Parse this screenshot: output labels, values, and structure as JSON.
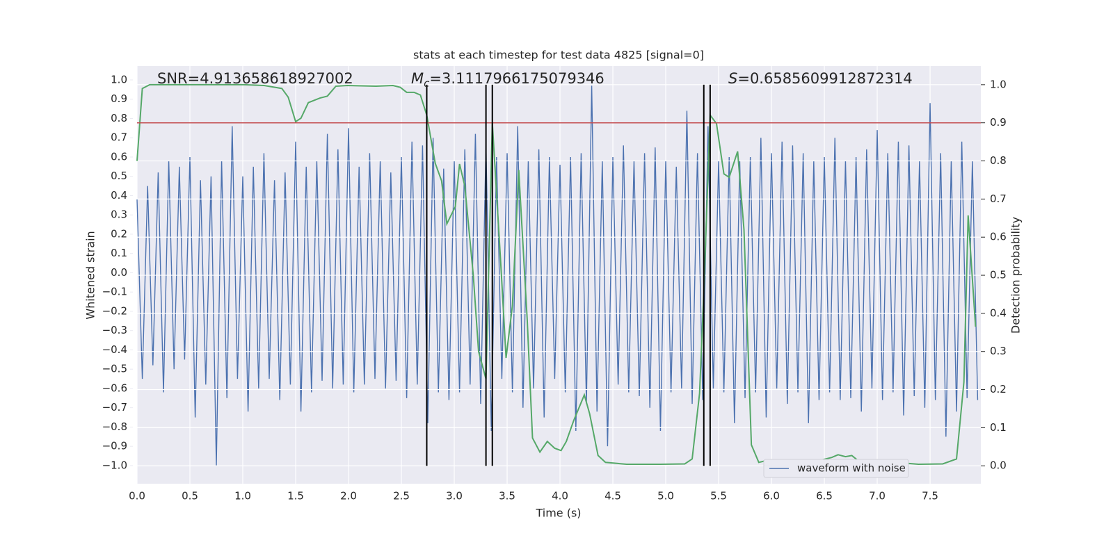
{
  "chart_data": {
    "type": "line",
    "title": "stats at each timestep for test data 4825 [signal=0]",
    "xlabel": "Time (s)",
    "ylabel": "Whitened strain",
    "y2label": "Detection probability",
    "annotations": [
      {
        "text": "SNR=4.913658618927002"
      },
      {
        "symbol": "M",
        "subscript": "c",
        "text": "=3.1117966175079346"
      },
      {
        "symbol": "S",
        "text": "=0.6585609912872314"
      }
    ],
    "xlim": [
      0,
      7.98
    ],
    "ylim": [
      -1.094,
      1.072
    ],
    "y2lim": [
      -0.047,
      1.049
    ],
    "xticks": [
      {
        "value": 0,
        "label": "0.0"
      },
      0.5,
      {
        "value": 1,
        "label": "1.0"
      },
      1.5,
      {
        "value": 2,
        "label": "2.0"
      },
      2.5,
      {
        "value": 3,
        "label": "3.0"
      },
      3.5,
      {
        "value": 4,
        "label": "4.0"
      },
      4.5,
      {
        "value": 5,
        "label": "5.0"
      },
      5.5,
      {
        "value": 6,
        "label": "6.0"
      },
      6.5,
      {
        "value": 7,
        "label": "7.0"
      },
      7.5
    ],
    "yticks": [
      {
        "value": -1,
        "label": "−1.0"
      },
      {
        "value": -0.9,
        "label": "−0.9"
      },
      {
        "value": -0.8,
        "label": "−0.8"
      },
      {
        "value": -0.7,
        "label": "−0.7"
      },
      {
        "value": -0.6,
        "label": "−0.6"
      },
      {
        "value": -0.5,
        "label": "−0.5"
      },
      {
        "value": -0.4,
        "label": "−0.4"
      },
      {
        "value": -0.3,
        "label": "−0.3"
      },
      {
        "value": -0.2,
        "label": "−0.2"
      },
      {
        "value": -0.1,
        "label": "−0.1"
      },
      {
        "value": 0,
        "label": "0.0"
      },
      0.1,
      0.2,
      0.3,
      0.4,
      0.5,
      0.6,
      0.7,
      0.8,
      0.9,
      {
        "value": 1,
        "label": "1.0"
      }
    ],
    "y2ticks": [
      {
        "value": 0,
        "label": "0.0"
      },
      0.1,
      0.2,
      0.3,
      0.4,
      0.5,
      0.6,
      0.7,
      0.8,
      0.9,
      {
        "value": 1,
        "label": "1.0"
      }
    ],
    "grid": true,
    "legend": "lower right",
    "series": [
      {
        "name": "waveform with noise",
        "color": "#4c72b0",
        "x": [
          0,
          0.05,
          0.1,
          0.15,
          0.2,
          0.25,
          0.3,
          0.35,
          0.4,
          0.45,
          0.5,
          0.55,
          0.6,
          0.65,
          0.7,
          0.75,
          0.8,
          0.85,
          0.9,
          0.95,
          1,
          1.05,
          1.1,
          1.15,
          1.2,
          1.25,
          1.3,
          1.35,
          1.4,
          1.45,
          1.5,
          1.55,
          1.6,
          1.65,
          1.7,
          1.75,
          1.8,
          1.85,
          1.9,
          1.95,
          2,
          2.05,
          2.1,
          2.15,
          2.2,
          2.25,
          2.3,
          2.35,
          2.4,
          2.45,
          2.5,
          2.55,
          2.6,
          2.65,
          2.7,
          2.75,
          2.8,
          2.85,
          2.9,
          2.95,
          3,
          3.05,
          3.1,
          3.15,
          3.2,
          3.25,
          3.3,
          3.35,
          3.4,
          3.45,
          3.5,
          3.55,
          3.6,
          3.65,
          3.7,
          3.75,
          3.8,
          3.85,
          3.9,
          3.95,
          4,
          4.05,
          4.1,
          4.15,
          4.2,
          4.25,
          4.3,
          4.35,
          4.4,
          4.45,
          4.5,
          4.55,
          4.6,
          4.65,
          4.7,
          4.75,
          4.8,
          4.85,
          4.9,
          4.95,
          5,
          5.05,
          5.1,
          5.15,
          5.2,
          5.25,
          5.3,
          5.35,
          5.4,
          5.45,
          5.5,
          5.55,
          5.6,
          5.65,
          5.7,
          5.75,
          5.8,
          5.85,
          5.9,
          5.95,
          6,
          6.05,
          6.1,
          6.15,
          6.2,
          6.25,
          6.3,
          6.35,
          6.4,
          6.45,
          6.5,
          6.55,
          6.6,
          6.65,
          6.7,
          6.75,
          6.8,
          6.85,
          6.9,
          6.95,
          7,
          7.05,
          7.1,
          7.15,
          7.2,
          7.25,
          7.3,
          7.35,
          7.4,
          7.45,
          7.5,
          7.55,
          7.6,
          7.65,
          7.7,
          7.75,
          7.8,
          7.85,
          7.9,
          7.95
        ],
        "values": [
          0.38,
          -0.55,
          0.45,
          -0.48,
          0.52,
          -0.62,
          0.58,
          -0.5,
          0.55,
          -0.45,
          0.6,
          -0.75,
          0.48,
          -0.58,
          0.5,
          -1.0,
          0.58,
          -0.65,
          0.76,
          -0.55,
          0.5,
          -0.72,
          0.55,
          -0.6,
          0.62,
          -0.55,
          0.48,
          -0.66,
          0.52,
          -0.58,
          0.68,
          -0.72,
          0.55,
          -0.62,
          0.58,
          -0.56,
          0.72,
          -0.6,
          0.64,
          -0.58,
          0.75,
          -0.62,
          0.55,
          -0.58,
          0.62,
          -0.55,
          0.58,
          -0.6,
          0.52,
          -0.56,
          0.6,
          -0.65,
          0.68,
          -0.58,
          0.66,
          -0.78,
          0.7,
          -0.62,
          0.54,
          -0.66,
          0.58,
          -0.62,
          0.64,
          -0.58,
          0.72,
          -0.68,
          0.66,
          -0.82,
          0.6,
          -0.55,
          0.62,
          -0.62,
          0.76,
          -0.7,
          0.58,
          -0.6,
          0.64,
          -0.75,
          0.6,
          -0.55,
          0.56,
          -0.62,
          0.6,
          -0.82,
          0.62,
          -0.68,
          0.97,
          -0.72,
          0.58,
          -0.9,
          0.6,
          -0.58,
          0.66,
          -0.62,
          0.58,
          -0.64,
          0.62,
          -0.7,
          0.65,
          -0.82,
          0.58,
          -0.62,
          0.55,
          -0.6,
          0.84,
          -0.68,
          0.62,
          -0.66,
          0.76,
          -0.6,
          0.58,
          -0.62,
          0.6,
          -0.78,
          0.58,
          -0.65,
          0.6,
          -0.62,
          0.7,
          -0.75,
          0.62,
          -0.6,
          0.68,
          -0.68,
          0.66,
          -0.62,
          0.62,
          -0.78,
          0.58,
          -0.66,
          0.6,
          -0.62,
          0.7,
          -0.66,
          0.58,
          -0.65,
          0.6,
          -0.72,
          0.64,
          -0.6,
          0.74,
          -0.66,
          0.62,
          -0.62,
          0.68,
          -0.74,
          0.66,
          -0.64,
          0.58,
          -0.7,
          0.88,
          -0.66,
          0.62,
          -0.85,
          0.58,
          -0.72,
          0.68,
          -0.65,
          0.58,
          -0.66
        ]
      },
      {
        "color": "#55a868",
        "axis": "y2",
        "x": [
          0,
          0.05,
          0.12,
          0.41,
          0.68,
          1.01,
          1.2,
          1.37,
          1.43,
          1.5,
          1.55,
          1.62,
          1.73,
          1.8,
          1.88,
          1.99,
          2.26,
          2.42,
          2.49,
          2.55,
          2.62,
          2.68,
          2.74,
          2.82,
          2.88,
          2.93,
          3.01,
          3.05,
          3.1,
          3.18,
          3.23,
          3.3,
          3.36,
          3.44,
          3.49,
          3.55,
          3.61,
          3.69,
          3.74,
          3.81,
          3.88,
          3.95,
          4.01,
          4.06,
          4.13,
          4.23,
          4.28,
          4.36,
          4.43,
          4.63,
          4.95,
          5.18,
          5.25,
          5.32,
          5.36,
          5.42,
          5.48,
          5.55,
          5.6,
          5.68,
          5.74,
          5.81,
          5.88,
          5.97,
          6.07,
          6.2,
          6.34,
          6.47,
          6.57,
          6.63,
          6.7,
          6.76,
          6.84,
          6.99,
          7.19,
          7.26,
          7.39,
          7.62,
          7.75,
          7.82,
          7.86,
          7.93
        ],
        "values": [
          0.8,
          0.99,
          1.0,
          1.0,
          1.0,
          1.0,
          0.998,
          0.99,
          0.967,
          0.903,
          0.912,
          0.953,
          0.965,
          0.97,
          0.996,
          0.998,
          0.996,
          0.998,
          0.993,
          0.98,
          0.98,
          0.973,
          0.92,
          0.794,
          0.748,
          0.635,
          0.68,
          0.792,
          0.734,
          0.5,
          0.3,
          0.228,
          0.9,
          0.53,
          0.283,
          0.42,
          0.776,
          0.383,
          0.073,
          0.036,
          0.064,
          0.046,
          0.04,
          0.064,
          0.119,
          0.186,
          0.137,
          0.027,
          0.009,
          0.004,
          0.004,
          0.005,
          0.018,
          0.19,
          0.456,
          0.92,
          0.898,
          0.766,
          0.757,
          0.825,
          0.62,
          0.055,
          0.009,
          0.015,
          0.004,
          0.007,
          0.004,
          0.015,
          0.022,
          0.029,
          0.024,
          0.027,
          0.009,
          0.004,
          0.004,
          0.007,
          0.004,
          0.005,
          0.018,
          0.22,
          0.657,
          0.365
        ]
      }
    ],
    "threshold": {
      "value": 0.9,
      "axis": "y2",
      "color": "#c44e52"
    },
    "vlines": {
      "x": [
        2.74,
        3.3,
        3.36,
        5.36,
        5.42
      ],
      "ymin": 0,
      "ymax": 1,
      "axis": "y2",
      "color": "#000000"
    }
  }
}
